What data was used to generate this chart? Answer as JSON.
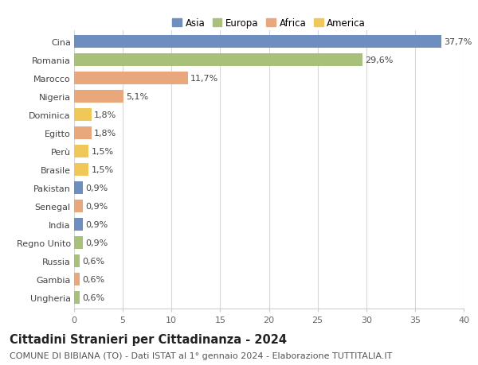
{
  "categories": [
    "Cina",
    "Romania",
    "Marocco",
    "Nigeria",
    "Dominica",
    "Egitto",
    "Perù",
    "Brasile",
    "Pakistan",
    "Senegal",
    "India",
    "Regno Unito",
    "Russia",
    "Gambia",
    "Ungheria"
  ],
  "values": [
    37.7,
    29.6,
    11.7,
    5.1,
    1.8,
    1.8,
    1.5,
    1.5,
    0.9,
    0.9,
    0.9,
    0.9,
    0.6,
    0.6,
    0.6
  ],
  "labels": [
    "37,7%",
    "29,6%",
    "11,7%",
    "5,1%",
    "1,8%",
    "1,8%",
    "1,5%",
    "1,5%",
    "0,9%",
    "0,9%",
    "0,9%",
    "0,9%",
    "0,6%",
    "0,6%",
    "0,6%"
  ],
  "colors": [
    "#6d8ebf",
    "#a8c07a",
    "#e8a87c",
    "#e8a87c",
    "#f0c85a",
    "#e8a87c",
    "#f0c85a",
    "#f0c85a",
    "#6d8ebf",
    "#e8a87c",
    "#6d8ebf",
    "#a8c07a",
    "#a8c07a",
    "#e8a87c",
    "#a8c07a"
  ],
  "legend_labels": [
    "Asia",
    "Europa",
    "Africa",
    "America"
  ],
  "legend_colors": [
    "#6d8ebf",
    "#a8c07a",
    "#e8a87c",
    "#f0c85a"
  ],
  "title": "Cittadini Stranieri per Cittadinanza - 2024",
  "subtitle": "COMUNE DI BIBIANA (TO) - Dati ISTAT al 1° gennaio 2024 - Elaborazione TUTTITALIA.IT",
  "xlim": [
    0,
    40
  ],
  "xticks": [
    0,
    5,
    10,
    15,
    20,
    25,
    30,
    35,
    40
  ],
  "bg_color": "#ffffff",
  "grid_color": "#d8d8d8",
  "bar_height": 0.68,
  "title_fontsize": 10.5,
  "subtitle_fontsize": 8,
  "label_fontsize": 8,
  "tick_fontsize": 8,
  "legend_fontsize": 8.5
}
